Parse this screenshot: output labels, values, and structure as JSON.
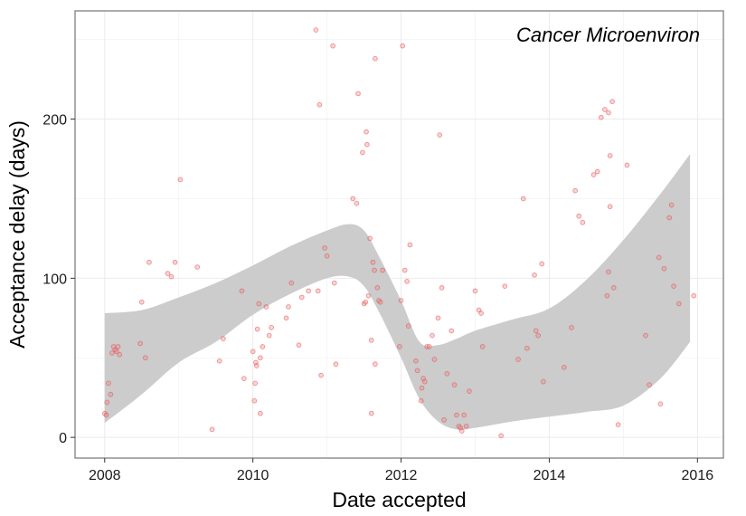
{
  "chart_data": {
    "type": "scatter",
    "annotation": "Cancer Microenviron",
    "xlabel": "Date accepted",
    "ylabel": "Acceptance delay (days)",
    "xlim": [
      2007.6,
      2016.35
    ],
    "ylim": [
      -13,
      268
    ],
    "x_ticks": [
      2008,
      2010,
      2012,
      2014,
      2016
    ],
    "x_tick_labels": [
      "2008",
      "2010",
      "2012",
      "2014",
      "2016"
    ],
    "y_ticks": [
      0,
      100,
      200
    ],
    "y_tick_labels": [
      "0",
      "100",
      "200"
    ],
    "grid": true,
    "legend": "none",
    "point_color": "#f08080",
    "ribbon_color": "#cccccc",
    "points": [
      [
        2008.0,
        15
      ],
      [
        2008.02,
        14
      ],
      [
        2008.03,
        22
      ],
      [
        2008.05,
        34
      ],
      [
        2008.08,
        27
      ],
      [
        2008.1,
        53
      ],
      [
        2008.12,
        57
      ],
      [
        2008.14,
        55
      ],
      [
        2008.16,
        54
      ],
      [
        2008.18,
        57
      ],
      [
        2008.2,
        52
      ],
      [
        2008.48,
        59
      ],
      [
        2008.5,
        85
      ],
      [
        2008.55,
        50
      ],
      [
        2008.6,
        110
      ],
      [
        2008.85,
        103
      ],
      [
        2008.9,
        101
      ],
      [
        2008.95,
        110
      ],
      [
        2009.02,
        162
      ],
      [
        2009.25,
        107
      ],
      [
        2009.45,
        5
      ],
      [
        2009.55,
        48
      ],
      [
        2009.6,
        62
      ],
      [
        2009.85,
        92
      ],
      [
        2009.88,
        37
      ],
      [
        2010.0,
        54
      ],
      [
        2010.02,
        23
      ],
      [
        2010.03,
        34
      ],
      [
        2010.04,
        47
      ],
      [
        2010.05,
        45
      ],
      [
        2010.06,
        68
      ],
      [
        2010.08,
        84
      ],
      [
        2010.1,
        50
      ],
      [
        2010.1,
        15
      ],
      [
        2010.13,
        57
      ],
      [
        2010.18,
        82
      ],
      [
        2010.22,
        64
      ],
      [
        2010.25,
        69
      ],
      [
        2010.45,
        75
      ],
      [
        2010.48,
        82
      ],
      [
        2010.52,
        97
      ],
      [
        2010.62,
        58
      ],
      [
        2010.66,
        88
      ],
      [
        2010.75,
        92
      ],
      [
        2010.85,
        256
      ],
      [
        2010.88,
        92
      ],
      [
        2010.9,
        209
      ],
      [
        2010.92,
        39
      ],
      [
        2010.97,
        119
      ],
      [
        2011.0,
        114
      ],
      [
        2011.08,
        246
      ],
      [
        2011.1,
        97
      ],
      [
        2011.12,
        46
      ],
      [
        2011.35,
        150
      ],
      [
        2011.4,
        147
      ],
      [
        2011.42,
        216
      ],
      [
        2011.48,
        179
      ],
      [
        2011.5,
        84
      ],
      [
        2011.52,
        85
      ],
      [
        2011.53,
        192
      ],
      [
        2011.54,
        184
      ],
      [
        2011.56,
        89
      ],
      [
        2011.58,
        125
      ],
      [
        2011.6,
        15
      ],
      [
        2011.6,
        61
      ],
      [
        2011.62,
        110
      ],
      [
        2011.64,
        105
      ],
      [
        2011.65,
        238
      ],
      [
        2011.65,
        46
      ],
      [
        2011.68,
        94
      ],
      [
        2011.7,
        86
      ],
      [
        2011.72,
        85
      ],
      [
        2011.75,
        105
      ],
      [
        2011.98,
        57
      ],
      [
        2012.0,
        86
      ],
      [
        2012.02,
        246
      ],
      [
        2012.05,
        105
      ],
      [
        2012.08,
        98
      ],
      [
        2012.1,
        70
      ],
      [
        2012.12,
        121
      ],
      [
        2012.2,
        48
      ],
      [
        2012.22,
        42
      ],
      [
        2012.27,
        23
      ],
      [
        2012.28,
        31
      ],
      [
        2012.3,
        37
      ],
      [
        2012.32,
        35
      ],
      [
        2012.35,
        57
      ],
      [
        2012.38,
        57
      ],
      [
        2012.42,
        64
      ],
      [
        2012.45,
        49
      ],
      [
        2012.5,
        75
      ],
      [
        2012.52,
        190
      ],
      [
        2012.55,
        94
      ],
      [
        2012.58,
        11
      ],
      [
        2012.62,
        40
      ],
      [
        2012.68,
        67
      ],
      [
        2012.72,
        33
      ],
      [
        2012.75,
        14
      ],
      [
        2012.78,
        7
      ],
      [
        2012.8,
        6
      ],
      [
        2012.82,
        4
      ],
      [
        2012.85,
        14
      ],
      [
        2012.88,
        7
      ],
      [
        2012.92,
        29
      ],
      [
        2013.0,
        92
      ],
      [
        2013.05,
        80
      ],
      [
        2013.08,
        78
      ],
      [
        2013.1,
        57
      ],
      [
        2013.35,
        1
      ],
      [
        2013.4,
        95
      ],
      [
        2013.58,
        49
      ],
      [
        2013.65,
        150
      ],
      [
        2013.7,
        56
      ],
      [
        2013.8,
        102
      ],
      [
        2013.82,
        67
      ],
      [
        2013.85,
        64
      ],
      [
        2013.9,
        109
      ],
      [
        2013.92,
        35
      ],
      [
        2014.2,
        44
      ],
      [
        2014.3,
        69
      ],
      [
        2014.35,
        155
      ],
      [
        2014.4,
        139
      ],
      [
        2014.45,
        135
      ],
      [
        2014.6,
        165
      ],
      [
        2014.65,
        167
      ],
      [
        2014.7,
        201
      ],
      [
        2014.75,
        206
      ],
      [
        2014.78,
        89
      ],
      [
        2014.8,
        204
      ],
      [
        2014.8,
        104
      ],
      [
        2014.82,
        177
      ],
      [
        2014.82,
        145
      ],
      [
        2014.85,
        211
      ],
      [
        2014.87,
        94
      ],
      [
        2014.93,
        8
      ],
      [
        2015.05,
        171
      ],
      [
        2015.3,
        64
      ],
      [
        2015.35,
        33
      ],
      [
        2015.48,
        113
      ],
      [
        2015.5,
        21
      ],
      [
        2015.55,
        106
      ],
      [
        2015.62,
        138
      ],
      [
        2015.65,
        146
      ],
      [
        2015.68,
        95
      ],
      [
        2015.75,
        84
      ],
      [
        2015.95,
        89
      ]
    ],
    "smooth_band": {
      "x": [
        2008.0,
        2008.5,
        2009.0,
        2009.5,
        2010.0,
        2010.5,
        2011.0,
        2011.3,
        2011.5,
        2011.7,
        2012.0,
        2012.25,
        2012.5,
        2012.75,
        2013.0,
        2013.5,
        2014.0,
        2014.5,
        2015.0,
        2015.5,
        2015.9
      ],
      "upper": [
        78,
        80,
        88,
        97,
        108,
        120,
        130,
        134,
        130,
        114,
        86,
        60,
        58,
        62,
        67,
        74,
        81,
        99,
        124,
        153,
        178
      ],
      "lower": [
        9,
        27,
        47,
        60,
        77,
        90,
        100,
        101,
        95,
        79,
        50,
        24,
        10,
        5,
        6,
        10,
        13,
        16,
        20,
        37,
        60
      ]
    }
  }
}
